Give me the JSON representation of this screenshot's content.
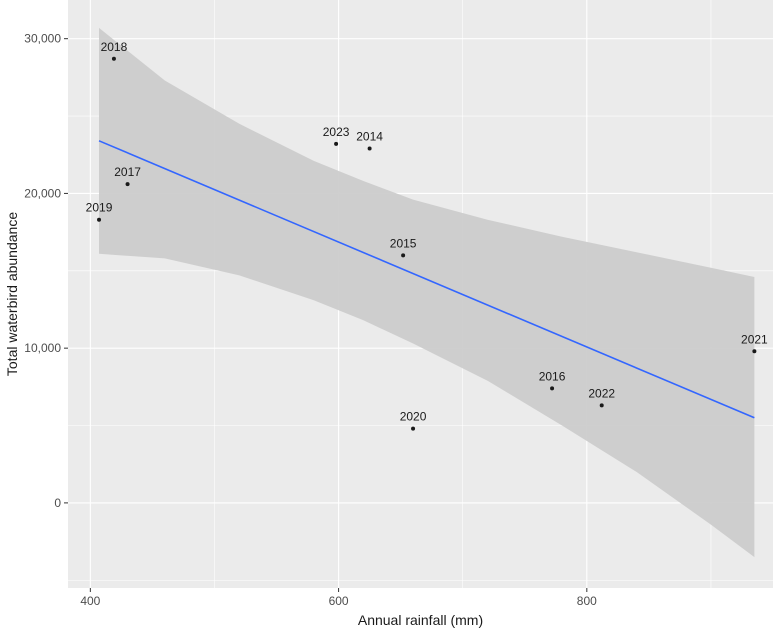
{
  "chart_data": {
    "type": "scatter",
    "xlabel": "Annual rainfall (mm)",
    "ylabel": "Total waterbird abundance",
    "xlim": [
      382,
      950
    ],
    "ylim": [
      -5500,
      32500
    ],
    "x_ticks": [
      400,
      600,
      800
    ],
    "x_tick_labels": [
      "400",
      "600",
      "800"
    ],
    "x_minor_ticks": [
      500,
      700,
      900
    ],
    "y_ticks": [
      0,
      10000,
      20000,
      30000
    ],
    "y_tick_labels": [
      "0",
      "10,000",
      "20,000",
      "30,000"
    ],
    "y_minor_ticks": [
      -5000,
      5000,
      15000,
      25000
    ],
    "points": [
      {
        "year": "2018",
        "x": 419,
        "y": 28700
      },
      {
        "year": "2017",
        "x": 430,
        "y": 20600
      },
      {
        "year": "2019",
        "x": 407,
        "y": 18300
      },
      {
        "year": "2023",
        "x": 598,
        "y": 23200
      },
      {
        "year": "2014",
        "x": 625,
        "y": 22900
      },
      {
        "year": "2015",
        "x": 652,
        "y": 16000
      },
      {
        "year": "2020",
        "x": 660,
        "y": 4800
      },
      {
        "year": "2016",
        "x": 772,
        "y": 7400
      },
      {
        "year": "2022",
        "x": 812,
        "y": 6300
      },
      {
        "year": "2021",
        "x": 935,
        "y": 9800
      }
    ],
    "fit_line": {
      "x": [
        407,
        935
      ],
      "y": [
        23400,
        5500
      ],
      "color": "#3366ff"
    },
    "confidence_band": {
      "x": [
        407,
        460,
        520,
        580,
        620,
        660,
        720,
        780,
        840,
        900,
        935
      ],
      "upper": [
        30700,
        27300,
        24500,
        22100,
        20800,
        19600,
        18300,
        17200,
        16200,
        15200,
        14600
      ],
      "lower": [
        16100,
        15800,
        14700,
        13100,
        11800,
        10300,
        7900,
        5000,
        2000,
        -1400,
        -3500
      ]
    },
    "colors": {
      "panel": "#ebebeb",
      "grid": "#ffffff",
      "point": "#1a1a1a",
      "band": "#cccccc"
    }
  }
}
